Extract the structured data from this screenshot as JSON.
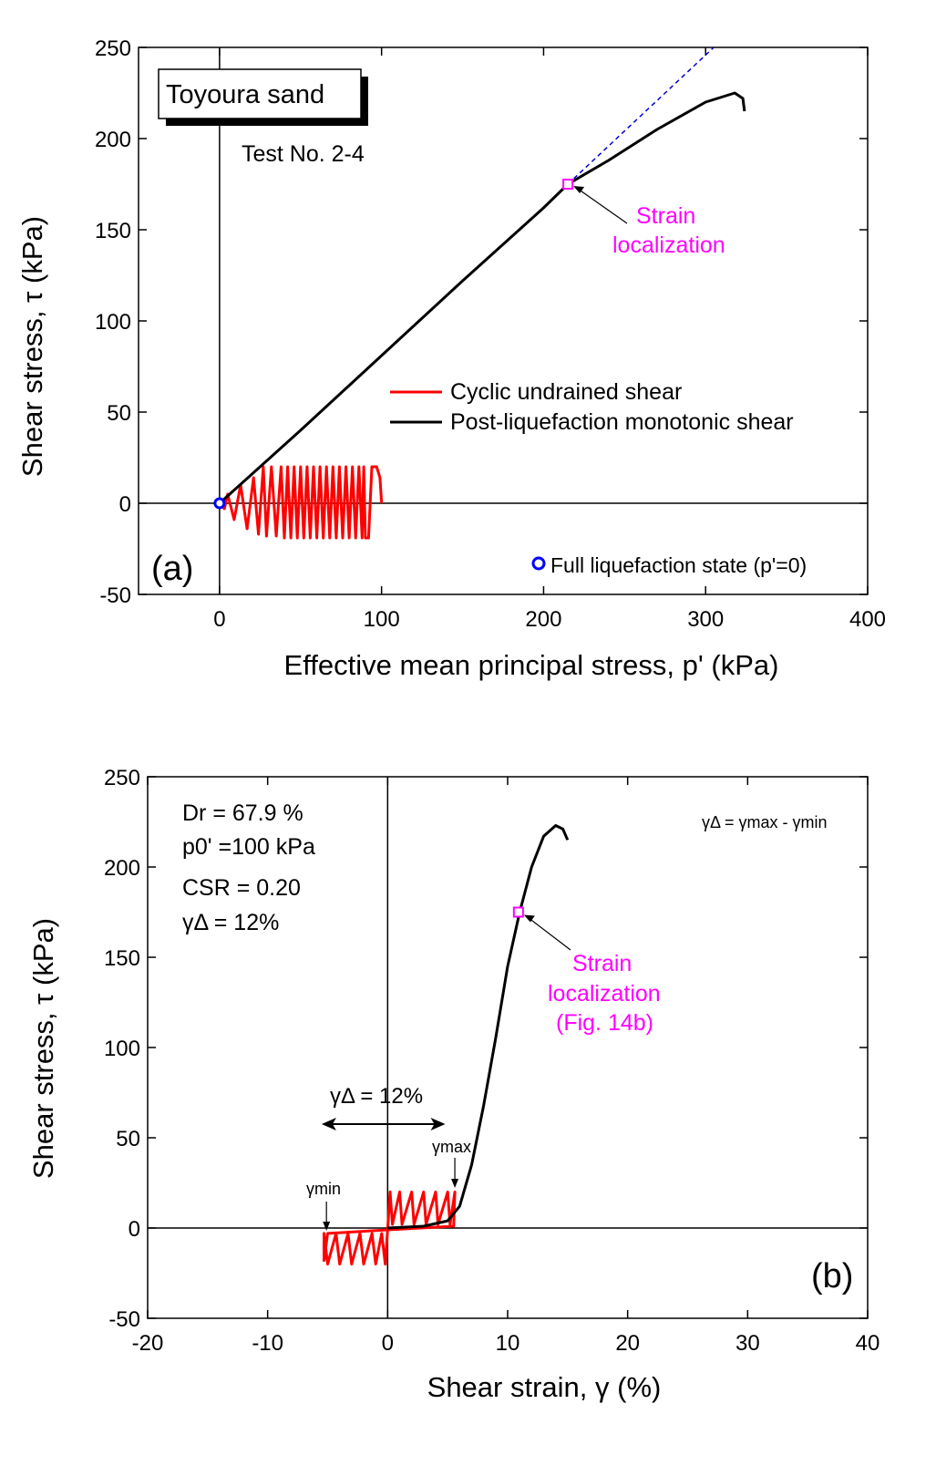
{
  "chart_data": [
    {
      "type": "line",
      "panel_label": "(a)",
      "xlabel": "Effective mean principal stress, p' (kPa)",
      "ylabel": "Shear stress, τ (kPa)",
      "xlim": [
        -50,
        400
      ],
      "ylim": [
        -50,
        250
      ],
      "xticks": [
        "0",
        "100",
        "200",
        "300",
        "400"
      ],
      "yticks": [
        "-50",
        "0",
        "50",
        "100",
        "150",
        "200",
        "250"
      ],
      "title_box": "Toyoura sand",
      "test_label": "Test No. 2-4",
      "legend": {
        "placement": "center-right",
        "entries": [
          "Cyclic undrained shear",
          "Post-liquefaction monotonic shear"
        ]
      },
      "marker_legend": "Full liquefaction state (p'=0)",
      "annotation": [
        "Strain",
        "localization"
      ],
      "colors": {
        "cyclic": "#ff0000",
        "monotonic": "#000000",
        "dashed": "#0000cc",
        "marker": "#0000ff",
        "localization": "#ff00ff"
      },
      "series": [
        {
          "name": "Cyclic undrained shear",
          "points": [
            [
              100,
              0
            ],
            [
              99,
              14
            ],
            [
              97,
              20
            ],
            [
              94,
              20
            ],
            [
              92,
              -19
            ],
            [
              90,
              -19
            ],
            [
              89,
              20
            ],
            [
              88,
              -19
            ],
            [
              86,
              20
            ],
            [
              84,
              -19
            ],
            [
              82,
              20
            ],
            [
              80,
              -19
            ],
            [
              78,
              20
            ],
            [
              76,
              -19
            ],
            [
              74,
              20
            ],
            [
              72,
              -19
            ],
            [
              70,
              20
            ],
            [
              68,
              -19
            ],
            [
              66,
              20
            ],
            [
              64,
              -19
            ],
            [
              62,
              20
            ],
            [
              60,
              -19
            ],
            [
              58,
              20
            ],
            [
              56,
              -19
            ],
            [
              54,
              20
            ],
            [
              52,
              -19
            ],
            [
              50,
              20
            ],
            [
              48,
              -19
            ],
            [
              46,
              20
            ],
            [
              44,
              -19
            ],
            [
              42,
              20
            ],
            [
              40,
              -19
            ],
            [
              38,
              20
            ],
            [
              35,
              -18
            ],
            [
              32,
              20
            ],
            [
              29,
              -18
            ],
            [
              27,
              20
            ],
            [
              24,
              -17
            ],
            [
              21,
              14
            ],
            [
              17,
              -14
            ],
            [
              13,
              10
            ],
            [
              9,
              -9
            ],
            [
              5,
              5
            ],
            [
              3,
              -3
            ],
            [
              0,
              0
            ]
          ]
        },
        {
          "name": "Post-liquefaction monotonic shear",
          "points": [
            [
              0,
              0
            ],
            [
              50,
              40
            ],
            [
              100,
              81
            ],
            [
              150,
              122
            ],
            [
              180,
              146
            ],
            [
              200,
              162
            ],
            [
              215,
              175
            ],
            [
              240,
              188
            ],
            [
              270,
              205
            ],
            [
              300,
              220
            ],
            [
              318,
              225
            ],
            [
              323,
              222
            ],
            [
              324,
              215
            ]
          ]
        },
        {
          "name": "",
          "style": "dashed",
          "points": [
            [
              215,
              175
            ],
            [
              305,
              250
            ]
          ]
        }
      ],
      "full_liquefaction_point": [
        0,
        0
      ],
      "localization_point": [
        215,
        175
      ]
    },
    {
      "type": "line",
      "panel_label": "(b)",
      "xlabel": "Shear strain, γ  (%)",
      "ylabel": "Shear stress, τ (kPa)",
      "xlim": [
        -20,
        40
      ],
      "ylim": [
        -50,
        250
      ],
      "xticks": [
        "-20",
        "-10",
        "0",
        "10",
        "20",
        "30",
        "40"
      ],
      "yticks": [
        "-50",
        "0",
        "50",
        "100",
        "150",
        "200",
        "250"
      ],
      "info": [
        "Dr = 67.9 %",
        "p0' =100 kPa",
        "CSR = 0.20",
        "γΔ = 12%"
      ],
      "formula": "γΔ = γmax - γmin",
      "range_label": "γΔ = 12%",
      "gamma_min_label": "γmin",
      "gamma_max_label": "γmax",
      "annotation": [
        "Strain",
        "localization",
        "(Fig. 14b)"
      ],
      "series": [
        {
          "name": "cyclic",
          "points": [
            [
              0,
              -1
            ],
            [
              0.2,
              20
            ],
            [
              0.4,
              2
            ],
            [
              1,
              20
            ],
            [
              1.2,
              2
            ],
            [
              2,
              20
            ],
            [
              2.2,
              2
            ],
            [
              3,
              20
            ],
            [
              3.2,
              2
            ],
            [
              4,
              20
            ],
            [
              4.2,
              2
            ],
            [
              5,
              20
            ],
            [
              5.2,
              2
            ],
            [
              5.6,
              20
            ],
            [
              5.5,
              1
            ],
            [
              0,
              -1
            ],
            [
              -0.2,
              -20
            ],
            [
              -0.5,
              -3
            ],
            [
              -1,
              -20
            ],
            [
              -1.3,
              -3
            ],
            [
              -2,
              -20
            ],
            [
              -2.3,
              -3
            ],
            [
              -3,
              -20
            ],
            [
              -3.3,
              -3
            ],
            [
              -4,
              -20
            ],
            [
              -4.3,
              -3
            ],
            [
              -5,
              -20
            ],
            [
              -5.3,
              -3
            ],
            [
              -5.3,
              -18
            ],
            [
              -5,
              -3
            ],
            [
              0,
              -1
            ]
          ]
        },
        {
          "name": "monotonic",
          "points": [
            [
              0,
              0
            ],
            [
              3,
              1
            ],
            [
              5,
              4
            ],
            [
              6,
              12
            ],
            [
              7,
              35
            ],
            [
              8,
              68
            ],
            [
              9,
              105
            ],
            [
              10,
              145
            ],
            [
              11,
              175
            ],
            [
              12,
              200
            ],
            [
              13,
              217
            ],
            [
              14,
              223
            ],
            [
              14.6,
              221
            ],
            [
              15,
              215
            ]
          ]
        }
      ],
      "localization_point": [
        10.9,
        175
      ]
    }
  ]
}
